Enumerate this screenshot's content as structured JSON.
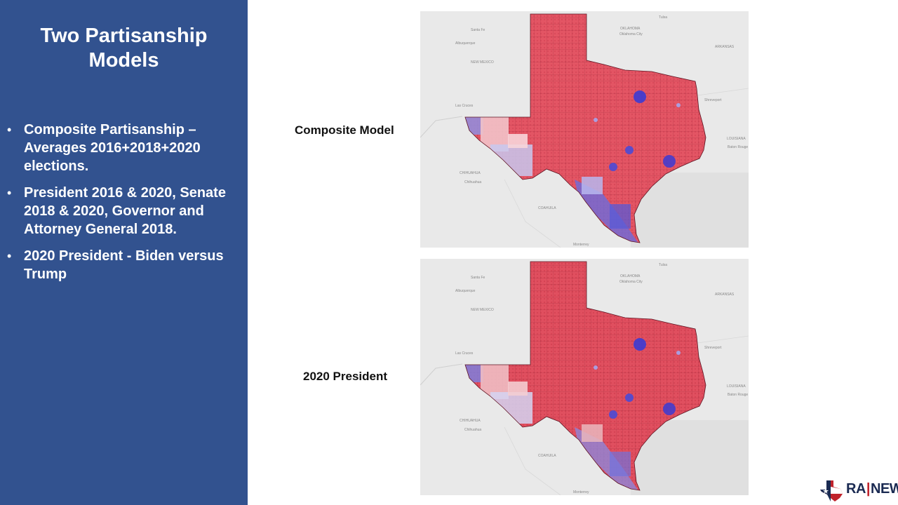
{
  "sidebar": {
    "title_lines": [
      "Two Partisanship",
      "Models"
    ],
    "bullets": [
      "Composite Partisanship – Averages 2016+2018+2020 elections.",
      "President 2016 & 2020, Senate 2018 & 2020, Governor and Attorney General 2018.",
      "2020 President  - Biden versus Trump"
    ],
    "bullet_glyph": "•"
  },
  "maps": [
    {
      "label": "Composite Model",
      "place_labels": {
        "santa_fe": "Santa Fe",
        "albuquerque": "Albuquerque",
        "new_mexico": "NEW MEXICO",
        "las_cruces": "Las Cruces",
        "chihuahua_state": "CHIHUAHUA",
        "chihuahua_city": "Chihuahua",
        "coahuila": "COAHUILA",
        "monterrey": "Monterrey",
        "oklahoma": "OKLAHOMA",
        "oklahoma_city": "Oklahoma City",
        "tulsa": "Tulsa",
        "arkansas": "ARKANSAS",
        "louisiana": "LOUISIANA",
        "shreveport": "Shreveport",
        "baton_rouge": "Baton Rouge"
      }
    },
    {
      "label": "2020 President",
      "place_labels": {
        "santa_fe": "Santa Fe",
        "albuquerque": "Albuquerque",
        "new_mexico": "NEW MEXICO",
        "las_cruces": "Las Cruces",
        "chihuahua_state": "CHIHUAHUA",
        "chihuahua_city": "Chihuahua",
        "coahuila": "COAHUILA",
        "monterrey": "Monterrey",
        "oklahoma": "OKLAHOMA",
        "oklahoma_city": "Oklahoma City",
        "tulsa": "Tulsa",
        "arkansas": "ARKANSAS",
        "louisiana": "LOUISIANA",
        "shreveport": "Shreveport",
        "baton_rouge": "Baton Rouge"
      }
    }
  ],
  "colors": {
    "sidebar_bg": "#32528f",
    "republican": "#e0505d",
    "republican_dark": "#b8283a",
    "democrat": "#3a3ad0",
    "democrat_light": "#a9a9ee",
    "map_background": "#e9e9e9"
  },
  "logo": {
    "text_left": "RA",
    "separator": "|",
    "text_right": "NEWS"
  }
}
